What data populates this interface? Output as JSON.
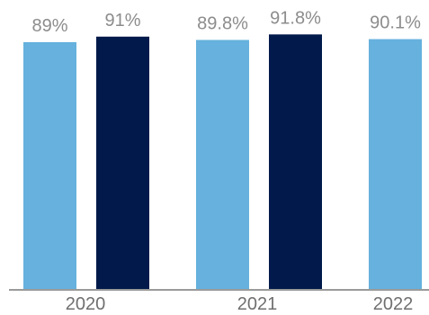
{
  "chart_data": {
    "type": "bar",
    "categories": [
      "2020",
      "2021",
      "2022"
    ],
    "bars": [
      {
        "category": "2020",
        "value": 89,
        "label": "89%",
        "color": "#66b1dd"
      },
      {
        "category": "2020",
        "value": 91,
        "label": "91%",
        "color": "#011a4b"
      },
      {
        "category": "2021",
        "value": 89.8,
        "label": "89.8%",
        "color": "#66b1dd"
      },
      {
        "category": "2021",
        "value": 91.8,
        "label": "91.8%",
        "color": "#011a4b"
      },
      {
        "category": "2022",
        "value": 90.1,
        "label": "90.1%",
        "color": "#66b1dd"
      }
    ],
    "ylim": [
      0,
      100
    ],
    "grid": false,
    "legend": "none",
    "colors": {
      "light_bar": "#66b1dd",
      "dark_bar": "#011a4b",
      "axis": "#9a9a9a",
      "value_text": "#8c8c8c",
      "tick_text": "#6f6f6f"
    }
  }
}
